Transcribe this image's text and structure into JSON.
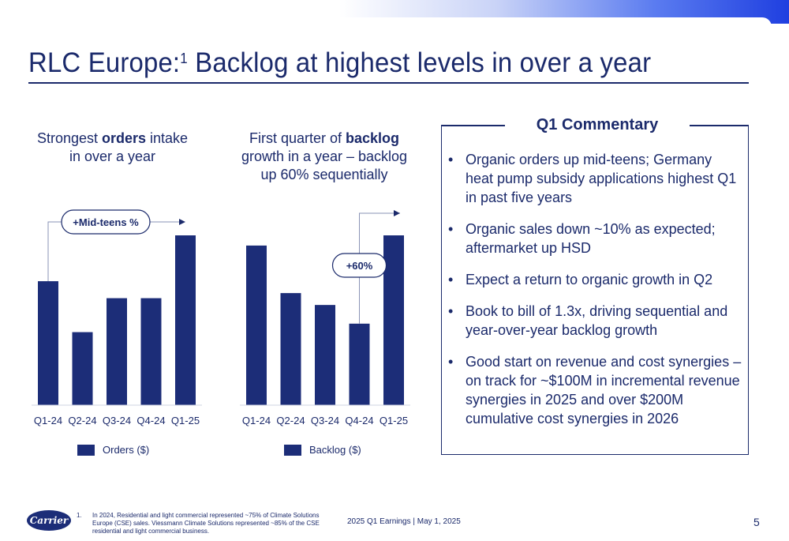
{
  "title": {
    "main": "RLC Europe:",
    "sup": "1",
    "rest": " Backlog at highest levels in over a year"
  },
  "orders_chart": {
    "heading_pre": "Strongest ",
    "heading_bold": "orders",
    "heading_post": " intake in over a year",
    "callout": "+Mid-teens %",
    "legend": "Orders ($)"
  },
  "backlog_chart": {
    "heading_pre": "First quarter of ",
    "heading_bold": "backlog",
    "heading_post": " growth in a year – backlog up 60% sequentially",
    "callout": "+60%",
    "legend": "Backlog ($)"
  },
  "commentary": {
    "title": "Q1 Commentary",
    "bullets": [
      "Organic orders up mid-teens; Germany heat pump subsidy applications highest Q1 in past five years",
      "Organic sales down ~10% as expected; aftermarket up HSD",
      "Expect a return to organic growth in Q2",
      "Book to bill of 1.3x, driving sequential and year-over-year backlog growth",
      "Good start on revenue and cost synergies – on track for ~$100M in incremental revenue synergies in 2025 and over $200M cumulative cost synergies in 2026"
    ]
  },
  "footnote": {
    "num": "1.",
    "text": "In 2024, Residential and light commercial represented ~75% of Climate Solutions Europe (CSE) sales. Viessmann Climate Solutions represented ~85% of the CSE residential and light commercial business."
  },
  "footer": {
    "center": "2025 Q1 Earnings | May 1, 2025",
    "page": "5"
  },
  "logo_text": "Carrier",
  "colors": {
    "bar": "#1c2d78",
    "text": "#1b2a6b"
  },
  "chart_data": [
    {
      "type": "bar",
      "categories": [
        "Q1-24",
        "Q2-24",
        "Q3-24",
        "Q4-24",
        "Q1-25"
      ],
      "series": [
        {
          "name": "Orders ($)",
          "values": [
            73,
            43,
            63,
            63,
            100
          ]
        }
      ],
      "note": "values are relative bar heights; no value axis is printed",
      "ylim": [
        0,
        100
      ]
    },
    {
      "type": "bar",
      "categories": [
        "Q1-24",
        "Q2-24",
        "Q3-24",
        "Q4-24",
        "Q1-25"
      ],
      "series": [
        {
          "name": "Backlog ($)",
          "values": [
            94,
            66,
            59,
            48,
            100
          ]
        }
      ],
      "note": "values are relative bar heights; no value axis is printed",
      "ylim": [
        0,
        100
      ]
    }
  ]
}
